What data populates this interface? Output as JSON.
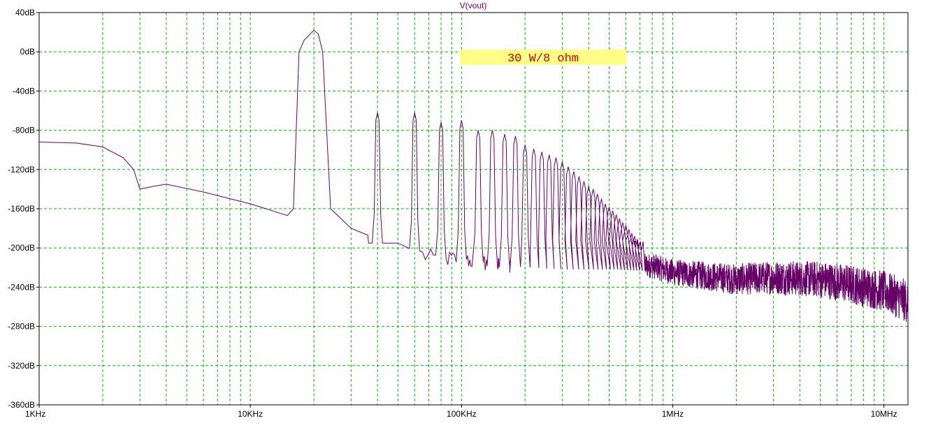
{
  "chart_data": {
    "type": "line",
    "title": "V(vout)",
    "xlabel": "",
    "ylabel": "",
    "x_scale": "log",
    "xlim_hz": [
      1000,
      13000000
    ],
    "ylim_db": [
      -360,
      40
    ],
    "x_ticks": [
      {
        "value": 1000,
        "label": "1KHz"
      },
      {
        "value": 10000,
        "label": "10KHz"
      },
      {
        "value": 100000,
        "label": "100KHz"
      },
      {
        "value": 1000000,
        "label": "1MHz"
      },
      {
        "value": 10000000,
        "label": "10MHz"
      }
    ],
    "y_ticks": [
      {
        "value": 40,
        "label": "40dB"
      },
      {
        "value": 0,
        "label": "0dB"
      },
      {
        "value": -40,
        "label": "-40dB"
      },
      {
        "value": -80,
        "label": "-80dB"
      },
      {
        "value": -120,
        "label": "-120dB"
      },
      {
        "value": -160,
        "label": "-160dB"
      },
      {
        "value": -200,
        "label": "-200dB"
      },
      {
        "value": -240,
        "label": "-240dB"
      },
      {
        "value": -280,
        "label": "-280dB"
      },
      {
        "value": -320,
        "label": "-320dB"
      },
      {
        "value": -360,
        "label": "-360dB"
      }
    ],
    "grid": true,
    "annotation": "30 W/8 ohm",
    "fundamental_hz": 20000,
    "series": [
      {
        "color": "#660066",
        "points": [
          [
            1000,
            -92
          ],
          [
            1500,
            -93
          ],
          [
            2000,
            -97
          ],
          [
            2500,
            -108
          ],
          [
            2800,
            -120
          ],
          [
            3000,
            -140
          ],
          [
            3500,
            -137
          ],
          [
            4000,
            -135
          ],
          [
            6000,
            -143
          ],
          [
            10000,
            -155
          ],
          [
            15000,
            -167
          ],
          [
            16000,
            -160
          ],
          [
            17000,
            0
          ],
          [
            18000,
            12
          ],
          [
            20000,
            22
          ],
          [
            21000,
            18
          ],
          [
            22000,
            0
          ],
          [
            24000,
            -160
          ],
          [
            30000,
            -180
          ],
          [
            36000,
            -187
          ]
        ],
        "harmonic_peaks_db": [
          [
            20000,
            22
          ],
          [
            40000,
            -62
          ],
          [
            60000,
            -62
          ],
          [
            80000,
            -72
          ],
          [
            100000,
            -70
          ],
          [
            120000,
            -80
          ],
          [
            140000,
            -80
          ],
          [
            160000,
            -84
          ],
          [
            180000,
            -86
          ],
          [
            200000,
            -95
          ],
          [
            220000,
            -99
          ],
          [
            240000,
            -102
          ],
          [
            260000,
            -105
          ],
          [
            280000,
            -108
          ],
          [
            300000,
            -112
          ],
          [
            320000,
            -117
          ],
          [
            340000,
            -122
          ],
          [
            360000,
            -127
          ],
          [
            380000,
            -132
          ],
          [
            400000,
            -137
          ],
          [
            420000,
            -140
          ],
          [
            440000,
            -145
          ],
          [
            460000,
            -150
          ],
          [
            480000,
            -155
          ],
          [
            500000,
            -158
          ],
          [
            520000,
            -162
          ],
          [
            540000,
            -166
          ],
          [
            560000,
            -170
          ],
          [
            580000,
            -174
          ],
          [
            600000,
            -177
          ],
          [
            620000,
            -181
          ],
          [
            640000,
            -185
          ],
          [
            660000,
            -188
          ],
          [
            680000,
            -191
          ],
          [
            700000,
            -194
          ]
        ],
        "valleys_db": [
          [
            50000,
            -195
          ],
          [
            70000,
            -210
          ],
          [
            100000,
            -212
          ],
          [
            150000,
            -218
          ],
          [
            200000,
            -220
          ],
          [
            300000,
            -222
          ],
          [
            500000,
            -222
          ],
          [
            1000000,
            -225
          ],
          [
            2000000,
            -230
          ],
          [
            5000000,
            -240
          ],
          [
            10000000,
            -250
          ],
          [
            13000000,
            -260
          ]
        ],
        "noise_floor_db": [
          [
            800000,
            -218
          ],
          [
            1000000,
            -225
          ],
          [
            2000000,
            -232
          ],
          [
            3000000,
            -230
          ],
          [
            5000000,
            -232
          ],
          [
            7000000,
            -237
          ],
          [
            10000000,
            -244
          ],
          [
            13000000,
            -255
          ]
        ]
      }
    ]
  }
}
